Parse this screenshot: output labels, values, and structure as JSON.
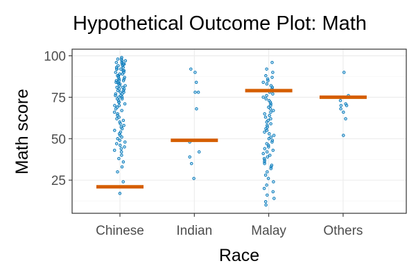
{
  "chart_data": {
    "type": "scatter",
    "title": "Hypothetical Outcome Plot: Math",
    "xlabel": "Race",
    "ylabel": "Math score",
    "categories": [
      "Chinese",
      "Indian",
      "Malay",
      "Others"
    ],
    "ylim": [
      5,
      104
    ],
    "yticks": [
      25,
      50,
      75,
      100
    ],
    "grid": true,
    "summary_line_values": [
      21,
      49,
      79,
      75
    ],
    "series": [
      {
        "category": "Chinese",
        "values": [
          99,
          98,
          98,
          97,
          97,
          96,
          96,
          95,
          95,
          95,
          94,
          94,
          93,
          93,
          92,
          92,
          92,
          91,
          91,
          90,
          90,
          89,
          89,
          88,
          88,
          87,
          87,
          86,
          86,
          85,
          85,
          85,
          84,
          84,
          83,
          83,
          82,
          82,
          81,
          81,
          80,
          80,
          79,
          79,
          78,
          78,
          77,
          77,
          76,
          76,
          75,
          75,
          74,
          74,
          73,
          72,
          72,
          71,
          70,
          70,
          69,
          68,
          67,
          66,
          65,
          64,
          63,
          62,
          61,
          60,
          59,
          58,
          57,
          56,
          55,
          54,
          53,
          52,
          51,
          50,
          49,
          48,
          47,
          46,
          45,
          44,
          43,
          42,
          40,
          38,
          36,
          33,
          30,
          24,
          21,
          17
        ]
      },
      {
        "category": "Indian",
        "values": [
          92,
          90,
          84,
          78,
          78,
          68,
          48,
          42,
          39,
          35,
          26
        ]
      },
      {
        "category": "Malay",
        "values": [
          96,
          92,
          90,
          88,
          87,
          86,
          85,
          84,
          83,
          82,
          81,
          80,
          79,
          78,
          77,
          76,
          75,
          74,
          73,
          72,
          71,
          70,
          69,
          68,
          67,
          66,
          65,
          64,
          63,
          62,
          61,
          60,
          59,
          58,
          57,
          56,
          55,
          54,
          53,
          52,
          51,
          50,
          49,
          48,
          47,
          46,
          45,
          44,
          43,
          42,
          41,
          40,
          39,
          38,
          37,
          36,
          35,
          34,
          33,
          32,
          30,
          28,
          26,
          24,
          22,
          20,
          18,
          16,
          14,
          12,
          10
        ]
      },
      {
        "category": "Others",
        "values": [
          90,
          76,
          73,
          71,
          70,
          70,
          68,
          66,
          62,
          52
        ]
      }
    ]
  }
}
